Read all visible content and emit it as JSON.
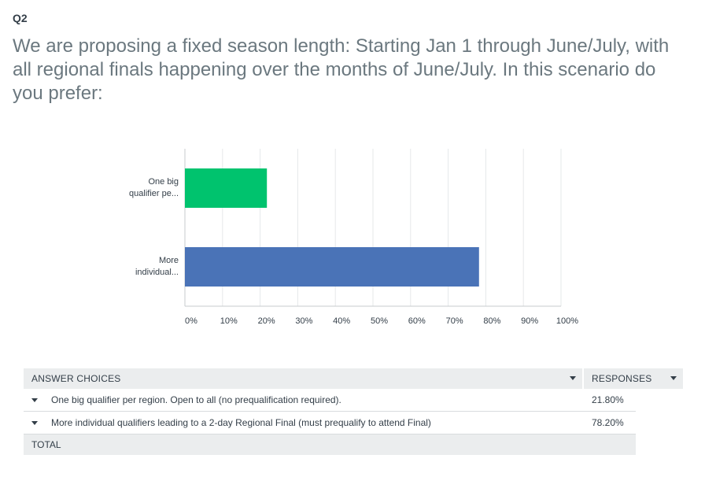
{
  "question": {
    "number": "Q2",
    "title": "We are proposing a fixed season length: Starting Jan 1 through June/July, with all regional finals happening over the months of June/July. In this scenario do you prefer:"
  },
  "chart_data": {
    "type": "bar",
    "orientation": "horizontal",
    "categories": [
      "One big qualifier pe...",
      "More individual..."
    ],
    "category_lines": [
      [
        "One big",
        "qualifier pe..."
      ],
      [
        "More",
        "individual..."
      ]
    ],
    "values": [
      21.8,
      78.2
    ],
    "colors": [
      "#00c36e",
      "#4a73b7"
    ],
    "xlim": [
      0,
      100
    ],
    "xticks": [
      "0%",
      "10%",
      "20%",
      "30%",
      "40%",
      "50%",
      "60%",
      "70%",
      "80%",
      "90%",
      "100%"
    ],
    "grid": true
  },
  "table": {
    "header_choices": "ANSWER CHOICES",
    "header_responses": "RESPONSES",
    "rows": [
      {
        "choice": "One big qualifier per region. Open to all (no prequalification required).",
        "response": "21.80%"
      },
      {
        "choice": "More individual qualifiers leading to a 2-day Regional Final (must prequalify to attend Final)",
        "response": "78.20%"
      }
    ],
    "total_label": "TOTAL"
  }
}
